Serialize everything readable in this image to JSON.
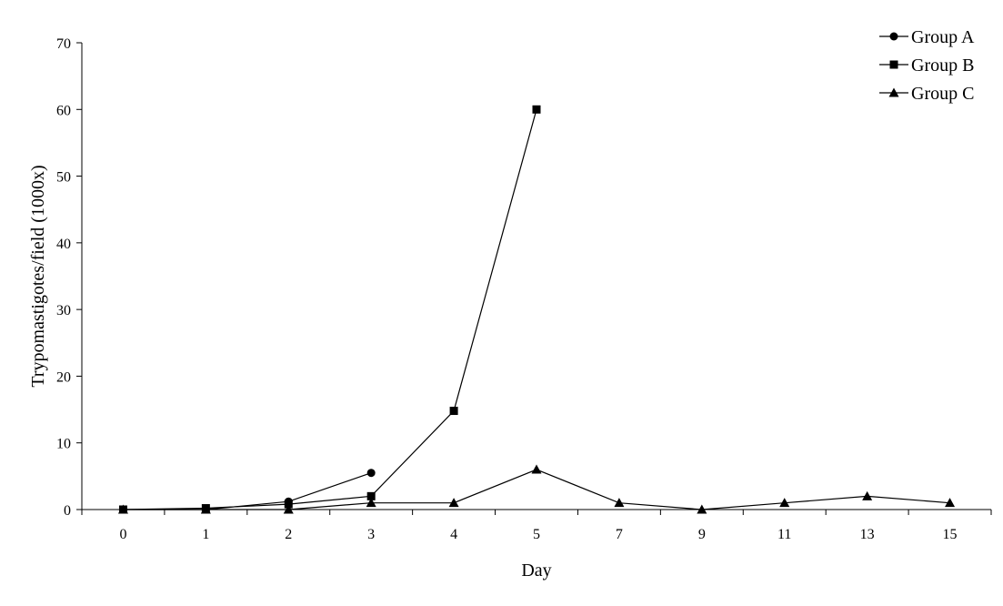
{
  "chart_data": {
    "type": "line",
    "categories": [
      "0",
      "1",
      "2",
      "3",
      "4",
      "5",
      "7",
      "9",
      "11",
      "13",
      "15"
    ],
    "xlabel": "Day",
    "ylabel": "Trypomastigotes/field (1000x)",
    "ylim": [
      0,
      70
    ],
    "yticks": [
      0,
      10,
      20,
      30,
      40,
      50,
      60,
      70
    ],
    "grid": false,
    "legend_position": "top-right",
    "series": [
      {
        "name": "Group A",
        "marker": "circle",
        "values": [
          0,
          0,
          1.2,
          5.5,
          null,
          null,
          null,
          null,
          null,
          null,
          null
        ]
      },
      {
        "name": "Group B",
        "marker": "square",
        "values": [
          0,
          0.2,
          0.8,
          2,
          14.8,
          60,
          null,
          null,
          null,
          null,
          null
        ]
      },
      {
        "name": "Group C",
        "marker": "triangle",
        "values": [
          0,
          0,
          0,
          1,
          1,
          6,
          1,
          0,
          1,
          2,
          1
        ]
      }
    ],
    "colors": {
      "line": "#000000",
      "axis": "#000000"
    }
  }
}
